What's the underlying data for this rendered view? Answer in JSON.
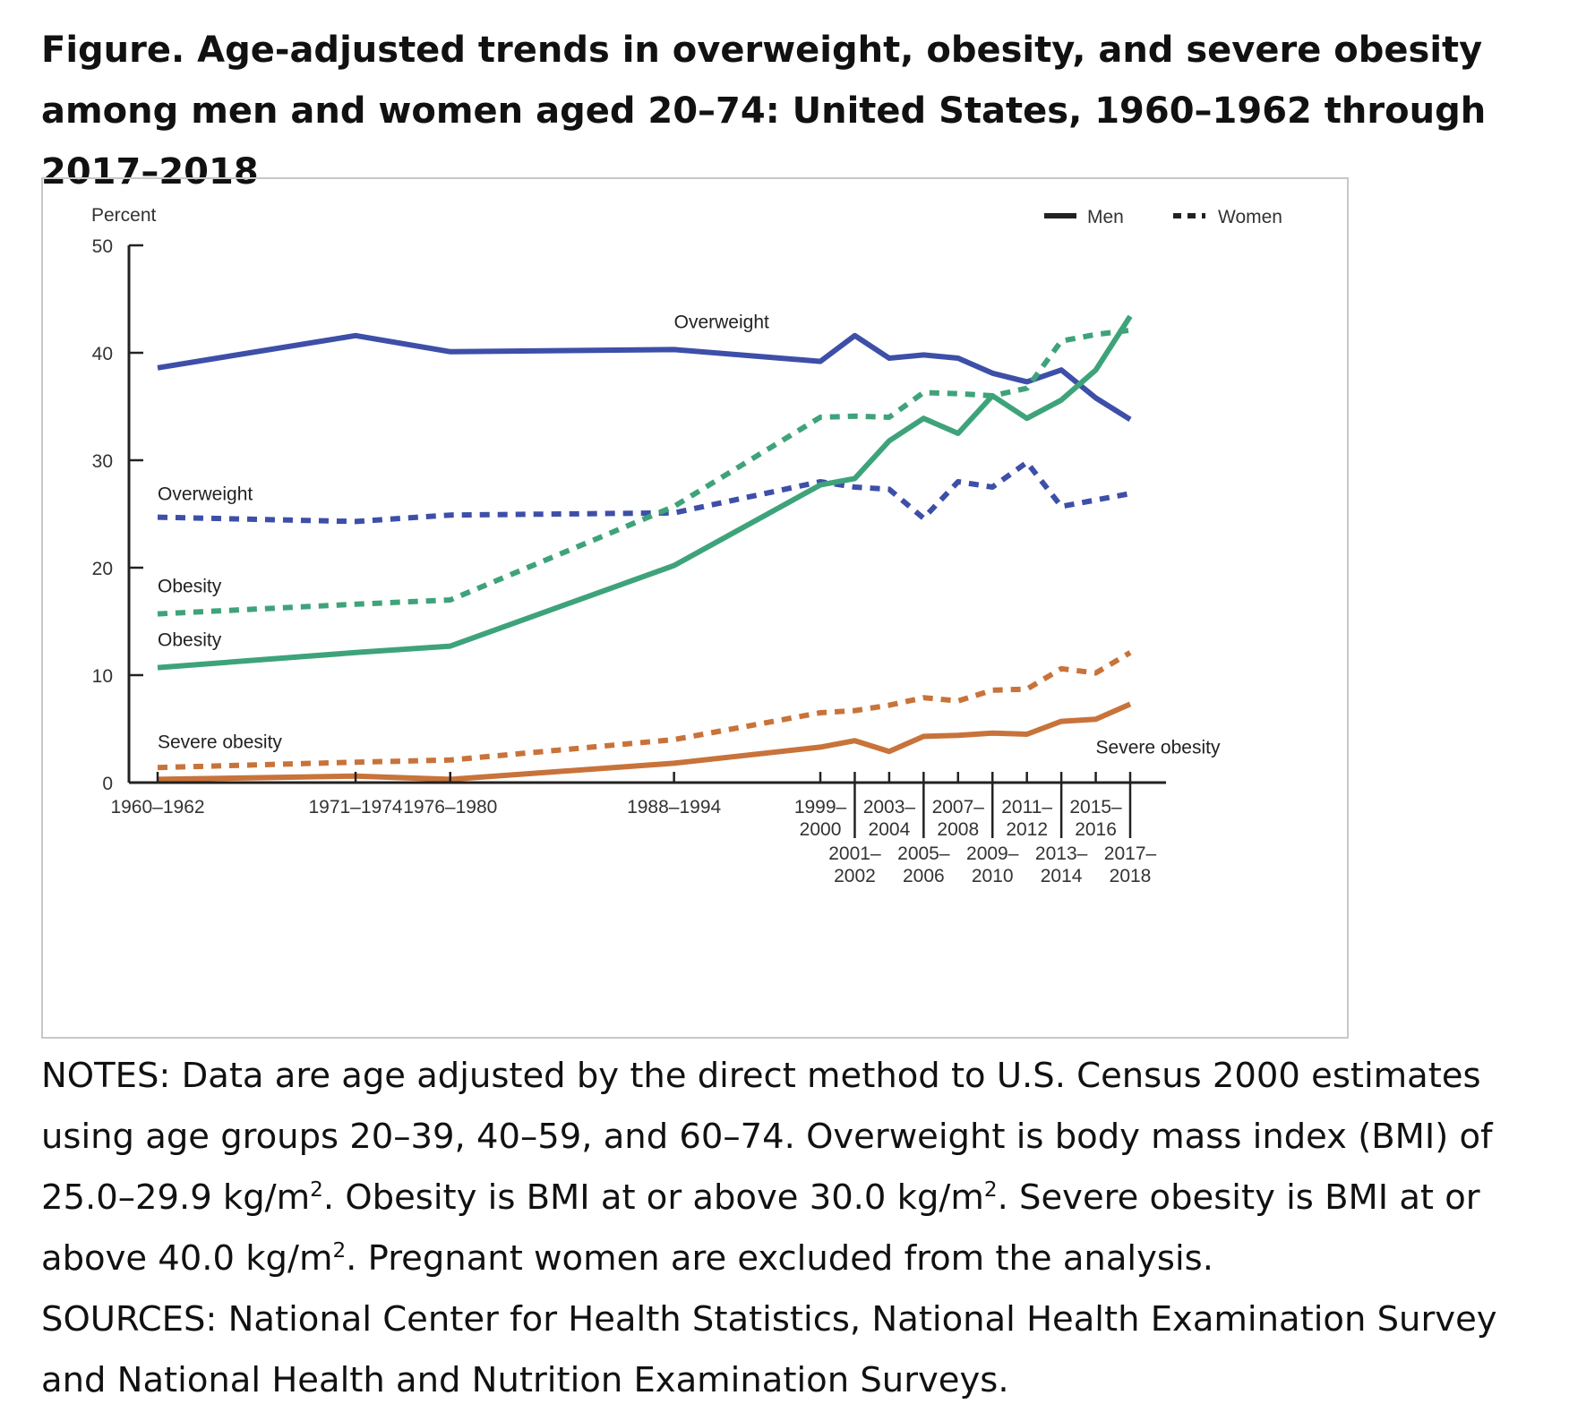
{
  "title": "Figure. Age-adjusted trends in overweight, obesity, and severe obesity among men and women aged 20–74: United States, 1960–1962 through 2017–2018",
  "notes": {
    "n1": "NOTES: Data are age adjusted by the direct method to U.S. Census 2000 estimates using age groups 20–39, 40–59, and 60–74. Overweight is body mass index (BMI) of 25.0–29.9 kg/m",
    "sup": "2",
    "n2": ". Obesity is BMI at or above 30.0 kg/m",
    "n3": ". Severe obesity is BMI at or above 40.0 kg/m",
    "n4": ". Pregnant women are excluded from the analysis.",
    "sources": "SOURCES: National Center for Health Statistics, National Health Examination Survey and National Health and Nutrition Examination Surveys."
  },
  "colors": {
    "overweight": "#3d4fa8",
    "obesity": "#3ea37a",
    "severe": "#c8733a",
    "axis": "#222222"
  },
  "chart_data": {
    "type": "line",
    "ylabel": "Percent",
    "ylim": [
      0,
      50
    ],
    "yticks": [
      0,
      10,
      20,
      30,
      40,
      50
    ],
    "legend": [
      {
        "name": "Men",
        "style": "solid"
      },
      {
        "name": "Women",
        "style": "dotted"
      }
    ],
    "periods": [
      {
        "label": "1960–1962",
        "year": 1961
      },
      {
        "label": "1971–1974",
        "year": 1972.5
      },
      {
        "label": "1976–1980",
        "year": 1978
      },
      {
        "label": "1988–1994",
        "year": 1991
      },
      {
        "label": "1999–2000",
        "year": 1999.5
      },
      {
        "label": "2001–2002",
        "year": 2001.5
      },
      {
        "label": "2003–2004",
        "year": 2003.5
      },
      {
        "label": "2005–2006",
        "year": 2005.5
      },
      {
        "label": "2007–2008",
        "year": 2007.5
      },
      {
        "label": "2009–2010",
        "year": 2009.5
      },
      {
        "label": "2011–2012",
        "year": 2011.5
      },
      {
        "label": "2013–2014",
        "year": 2013.5
      },
      {
        "label": "2015–2016",
        "year": 2015.5
      },
      {
        "label": "2017–2018",
        "year": 2017.5
      }
    ],
    "series": [
      {
        "name": "Overweight, men",
        "metric": "overweight",
        "sex": "men",
        "values": [
          38.6,
          41.6,
          40.1,
          40.3,
          39.2,
          41.6,
          39.5,
          39.8,
          39.5,
          38.1,
          37.3,
          38.4,
          35.8,
          33.8
        ]
      },
      {
        "name": "Overweight, women",
        "metric": "overweight",
        "sex": "women",
        "values": [
          24.7,
          24.3,
          24.9,
          25.1,
          28.0,
          27.5,
          27.3,
          24.6,
          28.0,
          27.5,
          29.8,
          25.7,
          26.3,
          26.9
        ]
      },
      {
        "name": "Obesity, men",
        "metric": "obesity",
        "sex": "men",
        "values": [
          10.7,
          12.1,
          12.7,
          20.2,
          27.7,
          28.3,
          31.8,
          33.9,
          32.5,
          36.0,
          33.9,
          35.6,
          38.4,
          43.4
        ]
      },
      {
        "name": "Obesity, women",
        "metric": "obesity",
        "sex": "women",
        "values": [
          15.7,
          16.6,
          17.0,
          25.7,
          34.0,
          34.1,
          34.0,
          36.3,
          36.2,
          36.0,
          36.7,
          41.1,
          41.7,
          42.1
        ]
      },
      {
        "name": "Severe obesity, men",
        "metric": "severe",
        "sex": "men",
        "values": [
          0.3,
          0.6,
          0.3,
          1.8,
          3.3,
          3.9,
          2.9,
          4.3,
          4.4,
          4.6,
          4.5,
          5.7,
          5.9,
          7.3
        ]
      },
      {
        "name": "Severe obesity, women",
        "metric": "severe",
        "sex": "women",
        "values": [
          1.4,
          1.9,
          2.1,
          4.0,
          6.5,
          6.7,
          7.2,
          7.9,
          7.6,
          8.6,
          8.7,
          10.6,
          10.2,
          12.1
        ]
      }
    ],
    "series_labels": [
      {
        "text": "Overweight",
        "series": "Overweight, men",
        "anchor_period": 3,
        "value": 42.3
      },
      {
        "text": "Overweight",
        "series": "Overweight, women",
        "anchor_period": 0,
        "value": 26.3
      },
      {
        "text": "Obesity",
        "series": "Obesity, women",
        "anchor_period": 0,
        "value": 17.7
      },
      {
        "text": "Obesity",
        "series": "Obesity, men",
        "anchor_period": 0,
        "value": 12.7
      },
      {
        "text": "Severe obesity",
        "series": "Severe obesity, women",
        "anchor_period": 0,
        "value": 3.2
      },
      {
        "text": "Severe obesity",
        "series": "Severe obesity, men",
        "anchor_period": 12,
        "value": 2.7
      }
    ]
  }
}
